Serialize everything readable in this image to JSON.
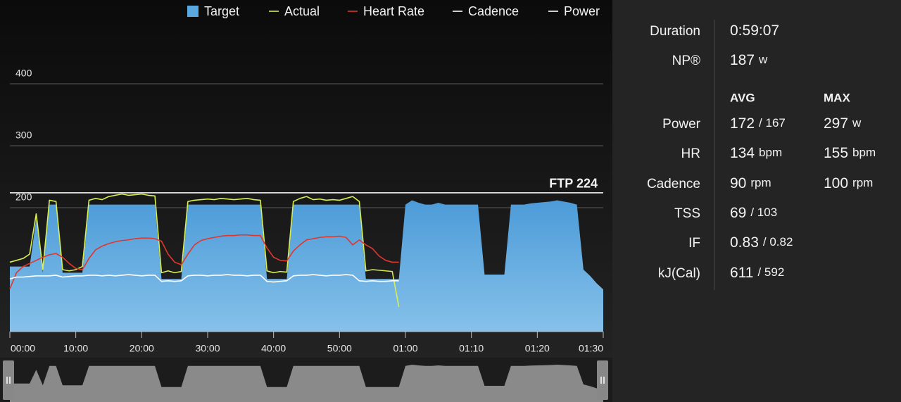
{
  "chart_data": {
    "type": "area",
    "x": [
      0,
      1,
      2,
      3,
      4,
      5,
      6,
      7,
      8,
      9,
      10,
      11,
      12,
      13,
      14,
      15,
      16,
      17,
      18,
      19,
      20,
      21,
      22,
      23,
      24,
      25,
      26,
      27,
      28,
      29,
      30,
      31,
      32,
      33,
      34,
      35,
      36,
      37,
      38,
      39,
      40,
      41,
      42,
      43,
      44,
      45,
      46,
      47,
      48,
      49,
      50,
      51,
      52,
      53,
      54,
      55,
      56,
      57,
      58,
      59,
      60,
      61,
      62,
      63,
      64,
      65,
      66,
      67,
      68,
      69,
      70,
      71,
      72,
      73,
      74,
      75,
      76,
      77,
      78,
      79,
      80,
      81,
      82,
      83,
      84,
      85,
      86,
      87,
      88,
      89,
      90
    ],
    "xlim": [
      0,
      90
    ],
    "xticks": [
      {
        "value": 0,
        "label": "00:00"
      },
      {
        "value": 10,
        "label": "10:00"
      },
      {
        "value": 20,
        "label": "20:00"
      },
      {
        "value": 30,
        "label": "30:00"
      },
      {
        "value": 40,
        "label": "40:00"
      },
      {
        "value": 50,
        "label": "50:00"
      },
      {
        "value": 60,
        "label": "01:00"
      },
      {
        "value": 70,
        "label": "01:10"
      },
      {
        "value": 80,
        "label": "01:20"
      },
      {
        "value": 90,
        "label": "01:30"
      }
    ],
    "ylim": [
      0,
      450
    ],
    "yticks": [
      200,
      300,
      400
    ],
    "grid": true,
    "ftp": 224,
    "ftp_label": "FTP 224",
    "series": [
      {
        "name": "Target",
        "color": "#5aa8e0",
        "style": "area",
        "values": [
          105,
          105,
          105,
          105,
          183,
          95,
          205,
          205,
          95,
          95,
          95,
          95,
          205,
          205,
          205,
          205,
          205,
          205,
          205,
          205,
          205,
          205,
          205,
          85,
          85,
          85,
          85,
          205,
          205,
          205,
          205,
          205,
          205,
          205,
          205,
          205,
          205,
          205,
          205,
          85,
          85,
          85,
          85,
          205,
          205,
          205,
          205,
          205,
          205,
          205,
          205,
          205,
          205,
          205,
          85,
          85,
          85,
          85,
          85,
          85,
          205,
          212,
          208,
          205,
          205,
          208,
          205,
          205,
          205,
          205,
          205,
          205,
          92,
          92,
          92,
          92,
          205,
          205,
          205,
          207,
          208,
          209,
          210,
          212,
          210,
          208,
          205,
          100,
          90,
          78,
          68
        ]
      },
      {
        "name": "Actual",
        "color": "#d9ef4f",
        "style": "line",
        "values": [
          112,
          115,
          118,
          125,
          190,
          100,
          212,
          210,
          100,
          98,
          100,
          105,
          212,
          215,
          213,
          218,
          220,
          222,
          220,
          221,
          222,
          220,
          219,
          95,
          98,
          95,
          97,
          210,
          212,
          213,
          214,
          213,
          215,
          214,
          213,
          214,
          215,
          213,
          212,
          98,
          95,
          97,
          96,
          210,
          215,
          218,
          213,
          214,
          212,
          213,
          212,
          215,
          218,
          210,
          98,
          100,
          99,
          98,
          97,
          40,
          null,
          null,
          null,
          null,
          null,
          null,
          null,
          null,
          null,
          null,
          null,
          null,
          null,
          null,
          null,
          null,
          null,
          null,
          null,
          null,
          null,
          null,
          null,
          null,
          null,
          null,
          null,
          null,
          null,
          null,
          null
        ]
      },
      {
        "name": "Heart Rate",
        "color": "#e0362c",
        "style": "line",
        "values": [
          69,
          95,
          105,
          110,
          115,
          120,
          124,
          126,
          120,
          110,
          102,
          100,
          118,
          132,
          138,
          142,
          145,
          147,
          148,
          150,
          151,
          151,
          150,
          146,
          125,
          112,
          108,
          125,
          140,
          147,
          150,
          152,
          154,
          155,
          155,
          156,
          156,
          155,
          155,
          135,
          120,
          115,
          114,
          130,
          140,
          148,
          150,
          152,
          153,
          153,
          154,
          152,
          140,
          148,
          140,
          134,
          122,
          115,
          112,
          112,
          null,
          null,
          null,
          null,
          null,
          null,
          null,
          null,
          null,
          null,
          null,
          null,
          null,
          null,
          null,
          null,
          null,
          null,
          null,
          null,
          null,
          null,
          null,
          null,
          null,
          null,
          null,
          null,
          null,
          null,
          null
        ]
      },
      {
        "name": "Cadence",
        "color": "#ffffff",
        "style": "line",
        "values": [
          85,
          88,
          88,
          89,
          90,
          90,
          90,
          91,
          88,
          89,
          90,
          90,
          91,
          91,
          90,
          91,
          90,
          91,
          92,
          91,
          90,
          91,
          91,
          81,
          82,
          81,
          82,
          90,
          91,
          91,
          90,
          91,
          91,
          92,
          91,
          91,
          90,
          91,
          91,
          81,
          80,
          81,
          82,
          90,
          91,
          91,
          92,
          91,
          90,
          91,
          91,
          92,
          91,
          82,
          81,
          82,
          81,
          81,
          82,
          82,
          null,
          null,
          null,
          null,
          null,
          null,
          null,
          null,
          null,
          null,
          null,
          null,
          null,
          null,
          null,
          null,
          null,
          null,
          null,
          null,
          null,
          null,
          null,
          null,
          null,
          null,
          null,
          null,
          null,
          null,
          null
        ]
      },
      {
        "name": "Power",
        "color": "#ffffff",
        "style": "legend"
      }
    ]
  },
  "stats": {
    "duration": {
      "label": "Duration",
      "value": "0:59:07"
    },
    "np": {
      "label": "NP®",
      "value": "187",
      "unit": "w"
    },
    "columns": [
      "AVG",
      "MAX"
    ],
    "rows": [
      {
        "label": "Power",
        "avg": "172",
        "avg_unit": "/ 167",
        "max": "297",
        "max_unit": "w"
      },
      {
        "label": "HR",
        "avg": "134",
        "avg_unit": "bpm",
        "max": "155",
        "max_unit": "bpm"
      },
      {
        "label": "Cadence",
        "avg": "90",
        "avg_unit": "rpm",
        "max": "100",
        "max_unit": "rpm"
      },
      {
        "label": "TSS",
        "avg": "69",
        "avg_unit": "/ 103"
      },
      {
        "label": "IF",
        "avg": "0.83",
        "avg_unit": "/ 0.82"
      },
      {
        "label": "kJ(Cal)",
        "avg": "611",
        "avg_unit": "/ 592"
      }
    ]
  }
}
